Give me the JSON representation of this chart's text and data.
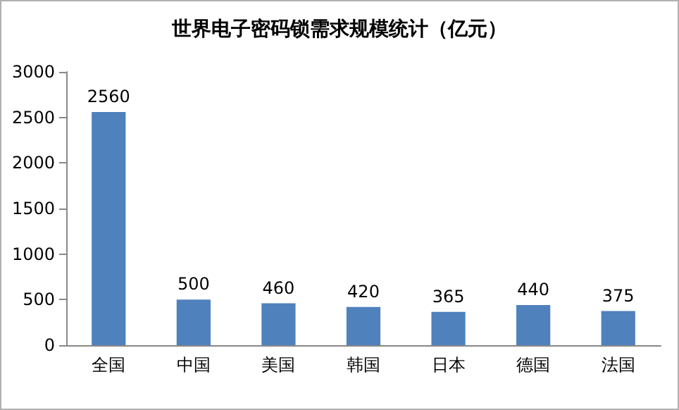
{
  "chart_data": {
    "type": "bar",
    "title": "世界电子密码锁需求规模统计（亿元）",
    "categories": [
      "全国",
      "中国",
      "美国",
      "韩国",
      "日本",
      "德国",
      "法国"
    ],
    "values": [
      2560,
      500,
      460,
      420,
      365,
      440,
      375
    ],
    "color": "#4f81bd",
    "ylim": [
      0,
      3000
    ],
    "yticks": [
      0,
      500,
      1000,
      1500,
      2000,
      2500,
      3000
    ],
    "grid": false,
    "data_labels": true
  }
}
